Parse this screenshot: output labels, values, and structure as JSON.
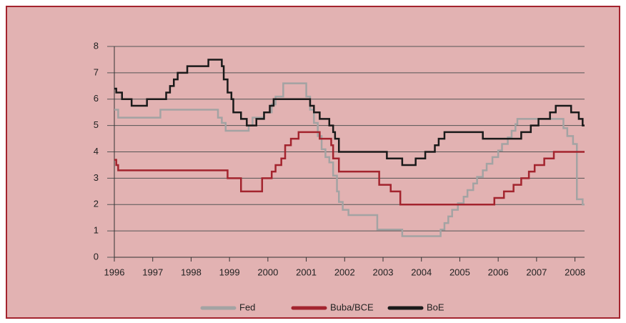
{
  "chart_data": {
    "type": "line",
    "step": "post",
    "xlim": [
      1996,
      2008.25
    ],
    "xticks": [
      1996,
      1997,
      1998,
      1999,
      2000,
      2001,
      2002,
      2003,
      2004,
      2005,
      2006,
      2007,
      2008
    ],
    "ylim": [
      0,
      8
    ],
    "yticks": [
      0,
      1,
      2,
      3,
      4,
      5,
      6,
      7,
      8
    ],
    "grid": true,
    "legend": "bottom",
    "series": [
      {
        "name": "Fed",
        "color": "#a3a3a3",
        "x": [
          1996,
          1996.1,
          1997.2,
          1998.7,
          1998.8,
          1998.9,
          1999.5,
          1999.6,
          1999.9,
          2000.1,
          2000.2,
          2000.4,
          2001.0,
          2001.1,
          2001.2,
          2001.3,
          2001.4,
          2001.5,
          2001.6,
          2001.7,
          2001.8,
          2001.85,
          2001.95,
          2002.1,
          2002.85,
          2003.5,
          2004.5,
          2004.6,
          2004.7,
          2004.8,
          2004.95,
          2005.1,
          2005.2,
          2005.35,
          2005.45,
          2005.6,
          2005.7,
          2005.85,
          2006.0,
          2006.1,
          2006.25,
          2006.35,
          2006.45,
          2006.5,
          2007.7,
          2007.8,
          2007.95,
          2008.05,
          2008.2
        ],
        "values": [
          5.6,
          5.3,
          5.6,
          5.3,
          5.1,
          4.8,
          5.0,
          5.3,
          5.5,
          5.8,
          6.1,
          6.6,
          6.1,
          5.6,
          5.1,
          4.6,
          4.1,
          3.8,
          3.6,
          3.1,
          2.5,
          2.1,
          1.8,
          1.6,
          1.05,
          0.8,
          1.05,
          1.3,
          1.55,
          1.8,
          2.05,
          2.3,
          2.55,
          2.8,
          3.05,
          3.3,
          3.55,
          3.8,
          4.05,
          4.3,
          4.55,
          4.8,
          5.05,
          5.25,
          4.9,
          4.6,
          4.3,
          2.2,
          2.0
        ]
      },
      {
        "name": "Buba/BCE",
        "color": "#a3242e",
        "x": [
          1996,
          1996.05,
          1996.1,
          1998.95,
          1999.3,
          1999.85,
          2000.1,
          2000.2,
          2000.35,
          2000.45,
          2000.6,
          2000.8,
          2001.35,
          2001.65,
          2001.7,
          2001.85,
          2002.9,
          2003.2,
          2003.45,
          2005.9,
          2006.15,
          2006.4,
          2006.6,
          2006.8,
          2006.95,
          2007.2,
          2007.45
        ],
        "values": [
          3.7,
          3.5,
          3.3,
          3.0,
          2.5,
          3.0,
          3.25,
          3.5,
          3.75,
          4.25,
          4.5,
          4.75,
          4.5,
          4.25,
          3.75,
          3.25,
          2.75,
          2.5,
          2.0,
          2.25,
          2.5,
          2.75,
          3.0,
          3.25,
          3.5,
          3.75,
          4.0
        ]
      },
      {
        "name": "BoE",
        "color": "#1a1a1a",
        "x": [
          1996,
          1996.05,
          1996.2,
          1996.45,
          1996.85,
          1997.35,
          1997.45,
          1997.55,
          1997.65,
          1997.9,
          1998.45,
          1998.8,
          1998.85,
          1998.95,
          1999.05,
          1999.1,
          1999.3,
          1999.45,
          1999.7,
          1999.9,
          2000.05,
          2000.15,
          2001.1,
          2001.2,
          2001.35,
          2001.6,
          2001.7,
          2001.75,
          2001.85,
          2003.1,
          2003.5,
          2003.85,
          2004.1,
          2004.35,
          2004.45,
          2004.6,
          2005.6,
          2006.6,
          2006.85,
          2007.05,
          2007.35,
          2007.5,
          2007.9,
          2008.1,
          2008.2
        ],
        "values": [
          6.4,
          6.25,
          6.0,
          5.75,
          6.0,
          6.25,
          6.5,
          6.75,
          7.0,
          7.25,
          7.5,
          7.25,
          6.75,
          6.25,
          6.0,
          5.5,
          5.25,
          5.0,
          5.25,
          5.5,
          5.75,
          6.0,
          5.75,
          5.5,
          5.25,
          5.0,
          4.75,
          4.5,
          4.0,
          3.75,
          3.5,
          3.75,
          4.0,
          4.25,
          4.5,
          4.75,
          4.5,
          4.75,
          5.0,
          5.25,
          5.5,
          5.75,
          5.5,
          5.25,
          5.0
        ]
      }
    ]
  }
}
